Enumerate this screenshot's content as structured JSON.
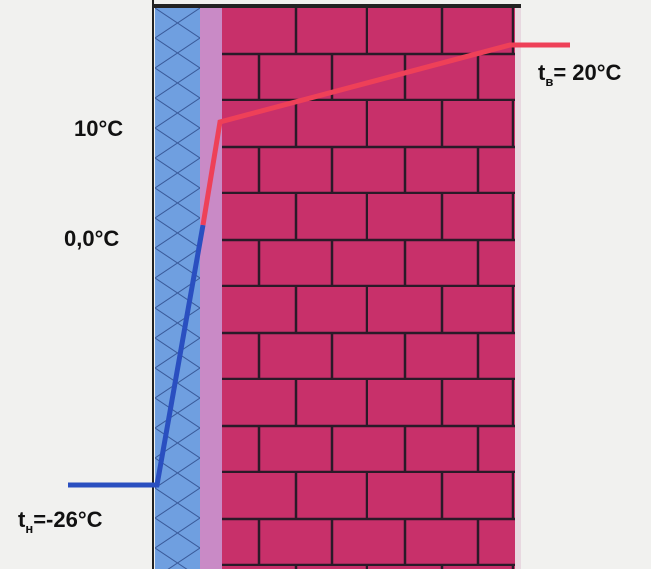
{
  "outside": {
    "symbol": "t",
    "subscript": "н",
    "value": "=-26°C"
  },
  "inside": {
    "symbol": "t",
    "subscript": "в",
    "value": "= 20°C"
  },
  "marks": [
    "10°C",
    "0,0°C"
  ]
}
